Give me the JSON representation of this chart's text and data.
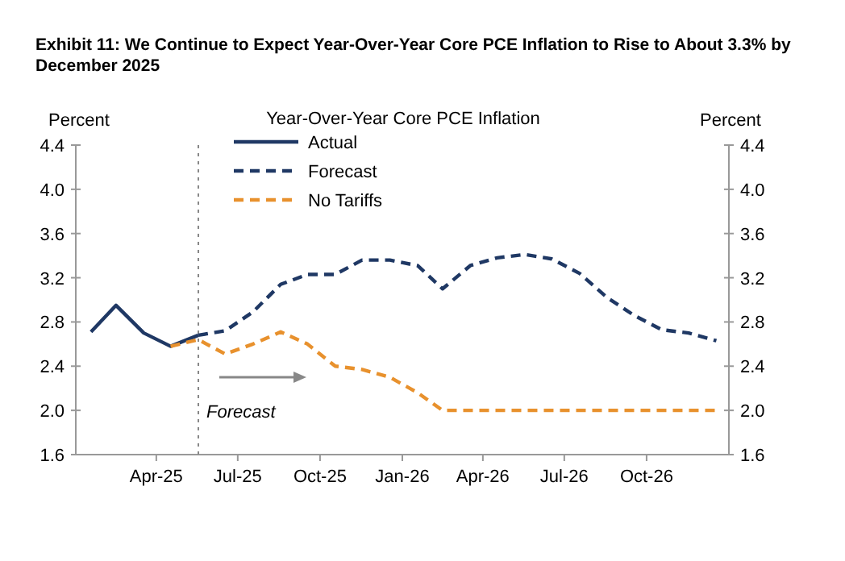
{
  "chart_data": {
    "type": "line",
    "title": "Exhibit 11: We Continue to Expect Year-Over-Year Core PCE Inflation to Rise to About 3.3% by December 2025",
    "subtitle": "Year-Over-Year Core PCE Inflation",
    "ylabel": "Percent",
    "y2label": "Percent",
    "xlim": [
      "2025-01-15",
      "2027-01-15"
    ],
    "xticks": [
      {
        "value": "2025-04-15",
        "label": "Apr-25"
      },
      {
        "value": "2025-07-15",
        "label": "Jul-25"
      },
      {
        "value": "2025-10-15",
        "label": "Oct-25"
      },
      {
        "value": "2026-01-15",
        "label": "Jan-26"
      },
      {
        "value": "2026-04-15",
        "label": "Apr-26"
      },
      {
        "value": "2026-07-15",
        "label": "Jul-26"
      },
      {
        "value": "2026-10-15",
        "label": "Oct-26"
      }
    ],
    "ylim": [
      1.6,
      4.4
    ],
    "yticks": [
      1.6,
      {
        "value": 2,
        "label": "2.0"
      },
      2.4,
      2.8,
      3.2,
      3.6,
      {
        "value": 4,
        "label": "4.0"
      },
      4.4
    ],
    "y2lim": [
      1.6,
      4.4
    ],
    "y2ticks": [
      1.6,
      {
        "value": 2,
        "label": "2.0"
      },
      2.4,
      2.8,
      3.2,
      3.6,
      {
        "value": 4,
        "label": "4.0"
      },
      4.4
    ],
    "series": [
      {
        "name": "Actual",
        "color": "#1f3864",
        "line_style": "solid",
        "x": [
          "2025-02",
          "2025-03",
          "2025-04",
          "2025-05",
          "2025-06"
        ],
        "values": [
          2.71,
          2.95,
          2.7,
          2.58,
          2.68
        ]
      },
      {
        "name": "Forecast",
        "color": "#1f3864",
        "line_style": "dashed",
        "x": [
          "2025-06",
          "2025-07",
          "2025-08",
          "2025-09",
          "2025-10",
          "2025-11",
          "2025-12",
          "2026-01",
          "2026-02",
          "2026-03",
          "2026-04",
          "2026-05",
          "2026-06",
          "2026-07",
          "2026-08",
          "2026-09",
          "2026-10",
          "2026-11",
          "2026-12",
          "2027-01"
        ],
        "values": [
          2.68,
          2.72,
          2.89,
          3.14,
          3.23,
          3.23,
          3.36,
          3.36,
          3.31,
          3.1,
          3.31,
          3.38,
          3.41,
          3.37,
          3.24,
          3.02,
          2.86,
          2.73,
          2.7,
          2.63
        ]
      },
      {
        "name": "No Tariffs",
        "color": "#e8912d",
        "line_style": "dashed",
        "x": [
          "2025-05",
          "2025-06",
          "2025-07",
          "2025-08",
          "2025-09",
          "2025-10",
          "2025-11",
          "2025-12",
          "2026-01",
          "2026-02",
          "2026-03",
          "2026-04",
          "2026-05",
          "2026-06",
          "2026-07",
          "2026-08",
          "2026-09",
          "2026-10",
          "2026-11",
          "2026-12",
          "2027-01"
        ],
        "values": [
          2.58,
          2.64,
          2.51,
          2.6,
          2.71,
          2.6,
          2.4,
          2.37,
          2.3,
          2.16,
          2,
          2,
          2,
          2,
          2,
          2,
          2,
          2,
          2,
          2,
          2
        ]
      }
    ],
    "ref_lines": [
      {
        "axis": "x",
        "value": "2025-06",
        "color": "#888888",
        "line_style": "dotted"
      }
    ],
    "annotations": [
      "Forecast"
    ],
    "legend": "top",
    "grid": false
  }
}
